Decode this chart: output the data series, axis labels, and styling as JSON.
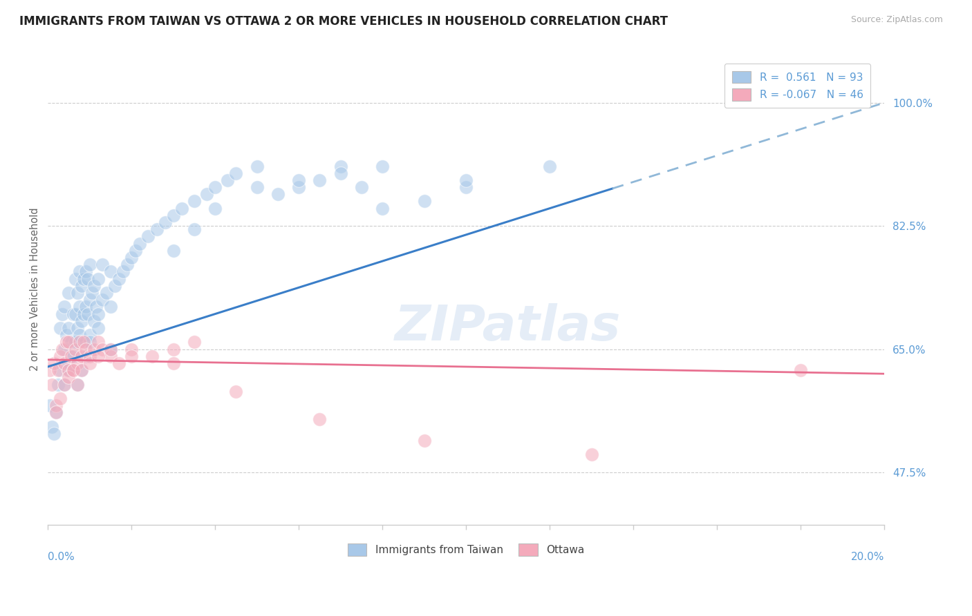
{
  "title": "IMMIGRANTS FROM TAIWAN VS OTTAWA 2 OR MORE VEHICLES IN HOUSEHOLD CORRELATION CHART",
  "source": "Source: ZipAtlas.com",
  "ylabel": "2 or more Vehicles in Household",
  "yticks": [
    47.5,
    65.0,
    82.5,
    100.0
  ],
  "ytick_labels": [
    "47.5%",
    "65.0%",
    "82.5%",
    "100.0%"
  ],
  "xmin": 0.0,
  "xmax": 20.0,
  "ymin": 40.0,
  "ymax": 107.0,
  "blue_color": "#a8c8e8",
  "pink_color": "#f4aabb",
  "trend_blue": "#3a7ec8",
  "trend_pink": "#e87090",
  "dashed_color": "#90b8d8",
  "watermark": "ZIPatlas",
  "blue_trend_x0": 0.0,
  "blue_trend_y0": 62.5,
  "blue_trend_x1": 20.0,
  "blue_trend_y1": 100.0,
  "blue_solid_end_x": 13.5,
  "pink_trend_x0": 0.0,
  "pink_trend_y0": 63.5,
  "pink_trend_x1": 20.0,
  "pink_trend_y1": 61.5,
  "tw_x": [
    0.05,
    0.1,
    0.15,
    0.2,
    0.25,
    0.3,
    0.3,
    0.35,
    0.4,
    0.4,
    0.45,
    0.5,
    0.5,
    0.5,
    0.55,
    0.6,
    0.6,
    0.65,
    0.65,
    0.65,
    0.7,
    0.7,
    0.75,
    0.75,
    0.75,
    0.8,
    0.8,
    0.85,
    0.85,
    0.9,
    0.9,
    0.9,
    0.95,
    0.95,
    1.0,
    1.0,
    1.0,
    1.05,
    1.1,
    1.1,
    1.15,
    1.2,
    1.2,
    1.3,
    1.3,
    1.4,
    1.5,
    1.5,
    1.6,
    1.7,
    1.8,
    1.9,
    2.0,
    2.1,
    2.2,
    2.4,
    2.6,
    2.8,
    3.0,
    3.2,
    3.5,
    3.8,
    4.0,
    4.3,
    4.5,
    5.0,
    5.5,
    6.0,
    6.5,
    7.0,
    7.5,
    8.0,
    9.0,
    10.0,
    3.0,
    3.5,
    4.0,
    5.0,
    6.0,
    7.0,
    8.0,
    10.0,
    12.0,
    0.4,
    0.5,
    0.6,
    0.7,
    0.8,
    0.9,
    1.0,
    1.2,
    1.5
  ],
  "tw_y": [
    57.0,
    54.0,
    53.0,
    56.0,
    60.0,
    62.0,
    68.0,
    70.0,
    65.0,
    71.0,
    67.0,
    63.0,
    68.0,
    73.0,
    66.0,
    64.0,
    70.0,
    66.0,
    70.0,
    75.0,
    68.0,
    73.0,
    67.0,
    71.0,
    76.0,
    69.0,
    74.0,
    70.0,
    75.0,
    66.0,
    71.0,
    76.0,
    70.0,
    75.0,
    67.0,
    72.0,
    77.0,
    73.0,
    69.0,
    74.0,
    71.0,
    70.0,
    75.0,
    72.0,
    77.0,
    73.0,
    71.0,
    76.0,
    74.0,
    75.0,
    76.0,
    77.0,
    78.0,
    79.0,
    80.0,
    81.0,
    82.0,
    83.0,
    84.0,
    85.0,
    86.0,
    87.0,
    88.0,
    89.0,
    90.0,
    91.0,
    87.0,
    88.0,
    89.0,
    91.0,
    88.0,
    85.0,
    86.0,
    88.0,
    79.0,
    82.0,
    85.0,
    88.0,
    89.0,
    90.0,
    91.0,
    89.0,
    91.0,
    60.0,
    62.0,
    64.0,
    60.0,
    62.0,
    64.0,
    66.0,
    68.0,
    65.0
  ],
  "ott_x": [
    0.05,
    0.1,
    0.15,
    0.2,
    0.25,
    0.3,
    0.35,
    0.4,
    0.45,
    0.5,
    0.5,
    0.55,
    0.6,
    0.65,
    0.7,
    0.75,
    0.8,
    0.85,
    0.9,
    1.0,
    1.1,
    1.2,
    1.3,
    1.5,
    1.7,
    2.0,
    2.5,
    3.0,
    3.5,
    0.3,
    0.4,
    0.5,
    0.6,
    0.7,
    0.8,
    1.0,
    1.2,
    1.5,
    2.0,
    3.0,
    4.5,
    6.5,
    9.0,
    13.0,
    18.0,
    0.2
  ],
  "ott_y": [
    62.0,
    60.0,
    63.0,
    57.0,
    62.0,
    64.0,
    65.0,
    63.0,
    66.0,
    62.0,
    66.0,
    64.0,
    62.0,
    65.0,
    63.0,
    66.0,
    64.0,
    66.0,
    65.0,
    64.0,
    65.0,
    66.0,
    65.0,
    64.0,
    63.0,
    65.0,
    64.0,
    65.0,
    66.0,
    58.0,
    60.0,
    61.0,
    62.0,
    60.0,
    62.0,
    63.0,
    64.0,
    65.0,
    64.0,
    63.0,
    59.0,
    55.0,
    52.0,
    50.0,
    62.0,
    56.0
  ],
  "scatter_size": 200,
  "scatter_alpha": 0.55
}
